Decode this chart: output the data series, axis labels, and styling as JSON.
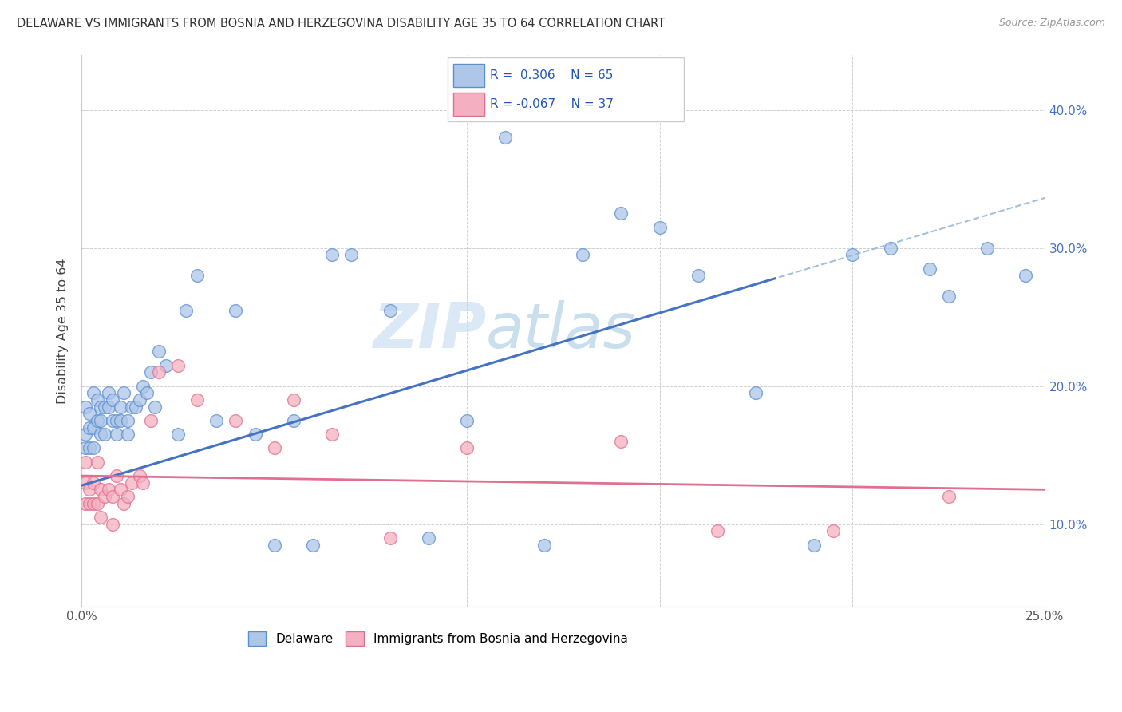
{
  "title": "DELAWARE VS IMMIGRANTS FROM BOSNIA AND HERZEGOVINA DISABILITY AGE 35 TO 64 CORRELATION CHART",
  "source": "Source: ZipAtlas.com",
  "ylabel": "Disability Age 35 to 64",
  "xlim": [
    0.0,
    0.25
  ],
  "ylim": [
    0.04,
    0.44
  ],
  "yticks": [
    0.1,
    0.2,
    0.3,
    0.4
  ],
  "yticklabels_right": [
    "10.0%",
    "20.0%",
    "30.0%",
    "40.0%"
  ],
  "xtick_pos": [
    0.0,
    0.05,
    0.1,
    0.15,
    0.2,
    0.25
  ],
  "xticklabels": [
    "0.0%",
    "",
    "",
    "",
    "",
    "25.0%"
  ],
  "blue_color": "#aec6e8",
  "pink_color": "#f4afc0",
  "blue_edge": "#5a8fd0",
  "pink_edge": "#e07090",
  "blue_line": "#4472c4",
  "pink_line": "#e07090",
  "dash_color": "#9ab8d8",
  "watermark_color": "#d0e4f4",
  "blue_dots_x": [
    0.001,
    0.001,
    0.001,
    0.002,
    0.002,
    0.002,
    0.003,
    0.003,
    0.003,
    0.004,
    0.004,
    0.005,
    0.005,
    0.005,
    0.006,
    0.006,
    0.007,
    0.007,
    0.008,
    0.008,
    0.009,
    0.009,
    0.01,
    0.01,
    0.011,
    0.012,
    0.012,
    0.013,
    0.014,
    0.015,
    0.016,
    0.017,
    0.018,
    0.019,
    0.02,
    0.022,
    0.025,
    0.027,
    0.03,
    0.035,
    0.04,
    0.045,
    0.05,
    0.055,
    0.06,
    0.065,
    0.07,
    0.08,
    0.09,
    0.1,
    0.11,
    0.12,
    0.13,
    0.14,
    0.15,
    0.16,
    0.175,
    0.19,
    0.2,
    0.21,
    0.22,
    0.225,
    0.235,
    0.245
  ],
  "blue_dots_y": [
    0.155,
    0.165,
    0.185,
    0.155,
    0.17,
    0.18,
    0.17,
    0.155,
    0.195,
    0.175,
    0.19,
    0.175,
    0.185,
    0.165,
    0.185,
    0.165,
    0.195,
    0.185,
    0.19,
    0.175,
    0.165,
    0.175,
    0.185,
    0.175,
    0.195,
    0.175,
    0.165,
    0.185,
    0.185,
    0.19,
    0.2,
    0.195,
    0.21,
    0.185,
    0.225,
    0.215,
    0.165,
    0.255,
    0.28,
    0.175,
    0.255,
    0.165,
    0.085,
    0.175,
    0.085,
    0.295,
    0.295,
    0.255,
    0.09,
    0.175,
    0.38,
    0.085,
    0.295,
    0.325,
    0.315,
    0.28,
    0.195,
    0.085,
    0.295,
    0.3,
    0.285,
    0.265,
    0.3,
    0.28
  ],
  "pink_dots_x": [
    0.001,
    0.001,
    0.001,
    0.002,
    0.002,
    0.003,
    0.003,
    0.004,
    0.004,
    0.005,
    0.005,
    0.006,
    0.007,
    0.008,
    0.008,
    0.009,
    0.01,
    0.011,
    0.012,
    0.013,
    0.015,
    0.016,
    0.018,
    0.02,
    0.025,
    0.03,
    0.04,
    0.05,
    0.055,
    0.065,
    0.08,
    0.1,
    0.14,
    0.165,
    0.195,
    0.225
  ],
  "pink_dots_y": [
    0.145,
    0.13,
    0.115,
    0.125,
    0.115,
    0.13,
    0.115,
    0.145,
    0.115,
    0.125,
    0.105,
    0.12,
    0.125,
    0.12,
    0.1,
    0.135,
    0.125,
    0.115,
    0.12,
    0.13,
    0.135,
    0.13,
    0.175,
    0.21,
    0.215,
    0.19,
    0.175,
    0.155,
    0.19,
    0.165,
    0.09,
    0.155,
    0.16,
    0.095,
    0.095,
    0.12
  ],
  "blue_line_x0": 0.0,
  "blue_line_y0": 0.128,
  "blue_line_x1": 0.18,
  "blue_line_y1": 0.278,
  "dash_line_x0": 0.17,
  "dash_line_x1": 0.25,
  "pink_line_x0": 0.0,
  "pink_line_y0": 0.135,
  "pink_line_x1": 0.25,
  "pink_line_y1": 0.125
}
